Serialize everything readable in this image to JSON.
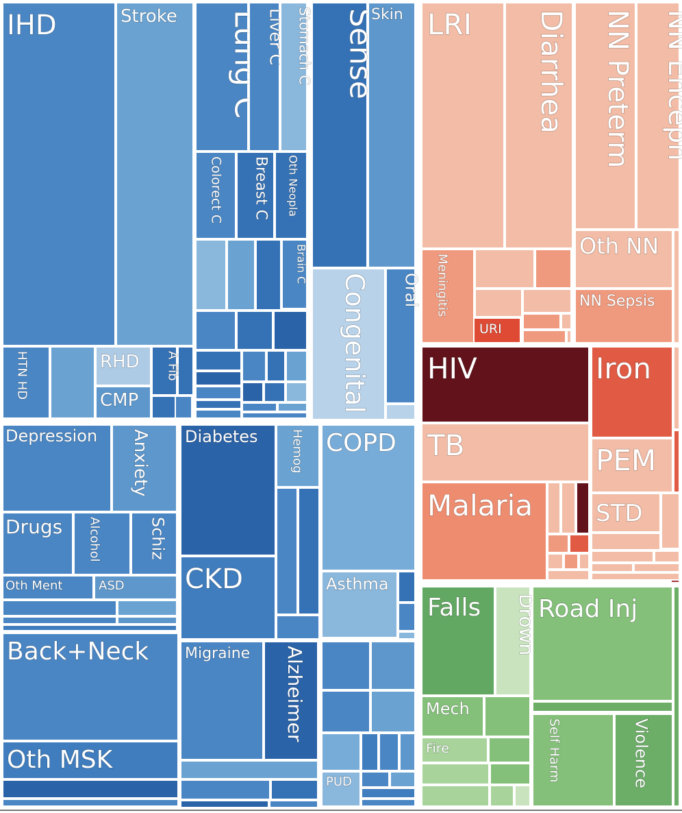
{
  "chart_data": {
    "type": "treemap",
    "title": "",
    "colors": {
      "ncd": "#4a86c4",
      "cmnn": "#ef9a7e",
      "injuries": "#6cae68",
      "hiv": "#62121a",
      "iron": "#e05a44"
    },
    "tiles": [
      {
        "label": "IHD",
        "color": "#4a86c4"
      },
      {
        "label": "Stroke",
        "color": "#6aa3d2"
      },
      {
        "label": "Lung C",
        "color": "#4a86c4"
      },
      {
        "label": "Liver C",
        "color": "#4a86c4"
      },
      {
        "label": "Stomach C",
        "color": "#8ab7dc"
      },
      {
        "label": "Colorect C",
        "color": "#4a86c4"
      },
      {
        "label": "Breast C",
        "color": "#3572b5"
      },
      {
        "label": "Oth Neopla",
        "color": "#3572b5"
      },
      {
        "label": "Brain C",
        "color": "#4a86c4"
      },
      {
        "label": "HTN HD",
        "color": "#4a86c4"
      },
      {
        "label": "RHD",
        "color": "#aecbe6"
      },
      {
        "label": "CMP",
        "color": "#5d97cc"
      },
      {
        "label": "A Fib",
        "color": "#3572b5"
      },
      {
        "label": "Sense",
        "color": "#3572b5"
      },
      {
        "label": "Skin",
        "color": "#5d97cc"
      },
      {
        "label": "Congenital",
        "color": "#b8d2e9"
      },
      {
        "label": "Oral",
        "color": "#4a86c4"
      },
      {
        "label": "Depression",
        "color": "#4a86c4"
      },
      {
        "label": "Anxiety",
        "color": "#5d97cc"
      },
      {
        "label": "Drugs",
        "color": "#4a86c4"
      },
      {
        "label": "Alcohol",
        "color": "#4a86c4"
      },
      {
        "label": "Schiz",
        "color": "#4a86c4"
      },
      {
        "label": "Oth Ment",
        "color": "#4a86c4"
      },
      {
        "label": "ASD",
        "color": "#5d97cc"
      },
      {
        "label": "Back+Neck",
        "color": "#4a86c4"
      },
      {
        "label": "Oth MSK",
        "color": "#3f7dbe"
      },
      {
        "label": "Diabetes",
        "color": "#2a63a8"
      },
      {
        "label": "Hemog",
        "color": "#6aa3d2"
      },
      {
        "label": "CKD",
        "color": "#3f7dbe"
      },
      {
        "label": "Migraine",
        "color": "#4a86c4"
      },
      {
        "label": "Alzheimer",
        "color": "#2a63a8"
      },
      {
        "label": "COPD",
        "color": "#78acd8"
      },
      {
        "label": "Asthma",
        "color": "#8ab7dc"
      },
      {
        "label": "PUD",
        "color": "#8ab7dc"
      },
      {
        "label": "LRI",
        "color": "#f2bca6"
      },
      {
        "label": "Diarrhea",
        "color": "#f2bca6"
      },
      {
        "label": "NN Preterm",
        "color": "#f2bca6"
      },
      {
        "label": "NN Enceph",
        "color": "#f2bca6"
      },
      {
        "label": "Meningitis",
        "color": "#ef9a7e"
      },
      {
        "label": "URI",
        "color": "#de4a33"
      },
      {
        "label": "Oth NN",
        "color": "#f2bca6"
      },
      {
        "label": "NN Sepsis",
        "color": "#ef9a7e"
      },
      {
        "label": "HIV",
        "color": "#62121a"
      },
      {
        "label": "Iron",
        "color": "#e05a44"
      },
      {
        "label": "TB",
        "color": "#f2bca6"
      },
      {
        "label": "PEM",
        "color": "#f2bca6"
      },
      {
        "label": "Malaria",
        "color": "#ee8c6f"
      },
      {
        "label": "STD",
        "color": "#f2bca6"
      },
      {
        "label": "Falls",
        "color": "#62a862"
      },
      {
        "label": "Drown",
        "color": "#c8e3be"
      },
      {
        "label": "Road Inj",
        "color": "#84c07a"
      },
      {
        "label": "Mech",
        "color": "#84c07a"
      },
      {
        "label": "Fire",
        "color": "#a8d49c"
      },
      {
        "label": "Self Harm",
        "color": "#84c07a"
      },
      {
        "label": "Violence",
        "color": "#6cae68"
      }
    ]
  }
}
